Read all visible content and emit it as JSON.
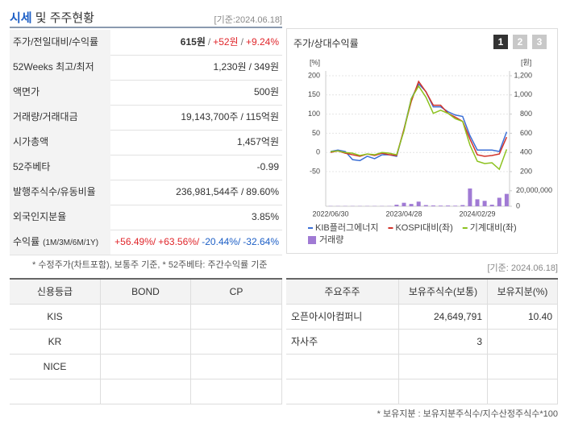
{
  "header": {
    "highlight": "시세",
    "rest": "및 주주현황",
    "date": "[기준:2024.06.18]"
  },
  "summary": {
    "rows": [
      {
        "label": "주가/전일대비/수익률",
        "parts": [
          {
            "text": "615원",
            "bold": true
          },
          {
            "text": "/",
            "color": "#777"
          },
          {
            "text": "+52원",
            "color": "#e0262b"
          },
          {
            "text": "/",
            "color": "#777"
          },
          {
            "text": "+9.24%",
            "color": "#e0262b"
          }
        ]
      },
      {
        "label": "52Weeks 최고/최저",
        "parts": [
          {
            "text": "1,230원"
          },
          {
            "text": "/"
          },
          {
            "text": "349원"
          }
        ]
      },
      {
        "label": "액면가",
        "parts": [
          {
            "text": "500원"
          }
        ]
      },
      {
        "label": "거래량/거래대금",
        "parts": [
          {
            "text": "19,143,700주"
          },
          {
            "text": "/"
          },
          {
            "text": "115억원"
          }
        ]
      },
      {
        "label": "시가총액",
        "parts": [
          {
            "text": "1,457억원"
          }
        ]
      },
      {
        "label": "52주베타",
        "parts": [
          {
            "text": "-0.99"
          }
        ]
      },
      {
        "label": "발행주식수/유동비율",
        "parts": [
          {
            "text": "236,981,544주"
          },
          {
            "text": "/"
          },
          {
            "text": "89.60%"
          }
        ]
      },
      {
        "label": "외국인지분율",
        "parts": [
          {
            "text": "3.85%"
          }
        ]
      },
      {
        "label": "수익률",
        "label_note": "(1M/3M/6M/1Y)",
        "parts": [
          {
            "text": "+56.49%/",
            "color": "#e0262b"
          },
          {
            "text": "+63.56%/",
            "color": "#e0262b"
          },
          {
            "text": "-20.44%/",
            "color": "#1d5fc6"
          },
          {
            "text": "-32.64%",
            "color": "#1d5fc6"
          }
        ]
      }
    ],
    "note": "* 수정주가(차트포함), 보통주 기준, * 52주베타: 주간수익률 기준"
  },
  "chart_data": {
    "type": "line",
    "title": "주가/상대수익률",
    "tabs": [
      "1",
      "2",
      "3"
    ],
    "ylabel": "[%]",
    "y2label": "[원]",
    "categories": [
      "2022/06/30",
      null,
      null,
      null,
      null,
      null,
      null,
      null,
      null,
      null,
      "2023/04/28",
      null,
      null,
      null,
      null,
      null,
      null,
      null,
      null,
      null,
      "2024/02/29",
      null,
      null,
      null,
      null
    ],
    "ylim": [
      -50,
      200
    ],
    "yticks": [
      -50,
      0,
      50,
      100,
      150,
      200
    ],
    "y2lim": [
      200,
      1200
    ],
    "y2ticks": [
      200,
      400,
      600,
      800,
      {
        "value": 1000,
        "label": "1,000"
      },
      {
        "value": 1200,
        "label": "1,200"
      }
    ],
    "volume_lim": [
      0,
      25000000
    ],
    "volume_ticks": [
      0,
      {
        "value": 20000000,
        "label": "20,000,000"
      }
    ],
    "grid": true,
    "series": [
      {
        "name": "KIB플러그에너지",
        "color": "#3b6fd6",
        "axis": "y2",
        "values": [
          410,
          425,
          410,
          325,
          315,
          360,
          335,
          375,
          375,
          360,
          640,
          960,
          1115,
          1035,
          875,
          875,
          825,
          790,
          775,
          575,
          425,
          425,
          425,
          410,
          615
        ]
      },
      {
        "name": "KOSPI대비(좌)",
        "color": "#d2332a",
        "values": [
          0,
          4,
          -2,
          -6,
          -10,
          -4,
          -8,
          -2,
          -6,
          -8,
          60,
          133,
          185,
          158,
          123,
          123,
          102,
          92,
          81,
          35,
          -6,
          -10,
          -8,
          -4,
          40
        ]
      },
      {
        "name": "기계대비(좌)",
        "color": "#8cc21f",
        "values": [
          2,
          4,
          0,
          -2,
          -8,
          -4,
          -6,
          0,
          -2,
          -6,
          56,
          140,
          173,
          144,
          102,
          110,
          102,
          88,
          81,
          19,
          -23,
          -29,
          -27,
          -44,
          8
        ]
      },
      {
        "name": "거래량",
        "color": "#a07ad4",
        "type": "bar",
        "axis": "volume",
        "values": [
          300000,
          300000,
          300000,
          300000,
          300000,
          300000,
          300000,
          300000,
          300000,
          2000000,
          4500000,
          3000000,
          6000000,
          1500000,
          1000000,
          800000,
          900000,
          700000,
          1500000,
          23000000,
          9000000,
          7000000,
          2000000,
          11000000,
          16000000
        ]
      }
    ]
  },
  "date2": "[기준: 2024.06.18]",
  "credit": {
    "headers": [
      "신용등급",
      "BOND",
      "CP"
    ],
    "rows": [
      [
        "KIS"
      ],
      [
        "KR"
      ],
      [
        "NICE"
      ]
    ]
  },
  "holders": {
    "headers": [
      "주요주주",
      "보유주식수(보통)",
      "보유지분(%)"
    ],
    "rows": [
      [
        "오픈아시아컴퍼니",
        "24,649,791",
        "10.40"
      ],
      [
        "자사주",
        "3"
      ]
    ],
    "note": "* 보유지분 : 보유지분주식수/지수산정주식수*100"
  }
}
